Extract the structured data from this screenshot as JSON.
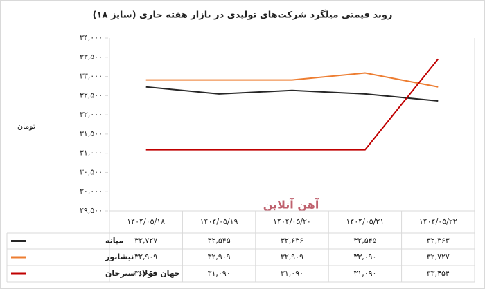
{
  "chart_data": {
    "type": "line",
    "title": "روند قیمتی میلگرد شرکت‌های تولیدی در بازار هفته جاری (سایز ۱۸)",
    "y_label": "تومان",
    "watermark": "آهن آنلاین",
    "categories": [
      "۱۴۰۴/۰۵/۱۸",
      "۱۴۰۴/۰۵/۱۹",
      "۱۴۰۴/۰۵/۲۰",
      "۱۴۰۴/۰۵/۲۱",
      "۱۴۰۴/۰۵/۲۲"
    ],
    "series": [
      {
        "name": "میانه",
        "color": "#262626",
        "values": [
          32727,
          32545,
          32636,
          32545,
          32363
        ],
        "value_labels": [
          "۳۲,۷۲۷",
          "۳۲,۵۴۵",
          "۳۲,۶۳۶",
          "۳۲,۵۴۵",
          "۳۲,۳۶۳"
        ]
      },
      {
        "name": "نیشابور",
        "color": "#ed7d31",
        "values": [
          32909,
          32909,
          32909,
          33090,
          32727
        ],
        "value_labels": [
          "۳۲,۹۰۹",
          "۳۲,۹۰۹",
          "۳۲,۹۰۹",
          "۳۳,۰۹۰",
          "۳۲,۷۲۷"
        ]
      },
      {
        "name": "جهان فولاد سیرجان",
        "color": "#c00000",
        "values": [
          31090,
          31090,
          31090,
          31090,
          33454
        ],
        "value_labels": [
          "۳۱,۰۹۰",
          "۳۱,۰۹۰",
          "۳۱,۰۹۰",
          "۳۱,۰۹۰",
          "۳۳,۴۵۴"
        ]
      }
    ],
    "ylim": [
      29500,
      34000
    ],
    "yticks": [
      {
        "value": 29500,
        "label": "۲۹,۵۰۰"
      },
      {
        "value": 30000,
        "label": "۳۰,۰۰۰"
      },
      {
        "value": 30500,
        "label": "۳۰,۵۰۰"
      },
      {
        "value": 31000,
        "label": "۳۱,۰۰۰"
      },
      {
        "value": 31500,
        "label": "۳۱,۵۰۰"
      },
      {
        "value": 32000,
        "label": "۳۲,۰۰۰"
      },
      {
        "value": 32500,
        "label": "۳۲,۵۰۰"
      },
      {
        "value": 33000,
        "label": "۳۳,۰۰۰"
      },
      {
        "value": 33500,
        "label": "۳۳,۵۰۰"
      },
      {
        "value": 34000,
        "label": "۳۴,۰۰۰"
      }
    ],
    "grid": false
  }
}
